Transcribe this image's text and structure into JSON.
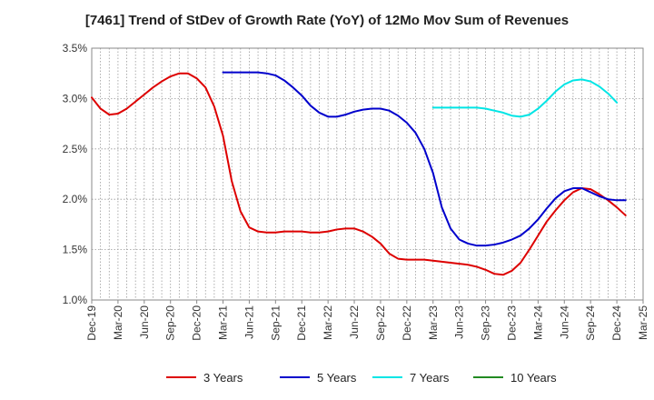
{
  "chart_data": {
    "type": "line",
    "title": "[7461]  Trend of StDev of Growth Rate (YoY) of 12Mo Mov Sum of Revenues",
    "xlabel": "",
    "ylabel": "",
    "ylim": [
      1.0,
      3.5
    ],
    "y_ticks": [
      "1.0%",
      "1.5%",
      "2.0%",
      "2.5%",
      "3.0%",
      "3.5%"
    ],
    "y_tick_values": [
      1.0,
      1.5,
      2.0,
      2.5,
      3.0,
      3.5
    ],
    "x_ticks": [
      "Dec-19",
      "Mar-20",
      "Jun-20",
      "Sep-20",
      "Dec-20",
      "Mar-21",
      "Jun-21",
      "Sep-21",
      "Dec-21",
      "Mar-22",
      "Jun-22",
      "Sep-22",
      "Dec-22",
      "Mar-23",
      "Jun-23",
      "Sep-23",
      "Dec-23",
      "Mar-24",
      "Jun-24",
      "Sep-24",
      "Dec-24",
      "Mar-25"
    ],
    "x_start": "Dec-19",
    "x_unit": "months since Dec-19",
    "grid": true,
    "legend_position": "bottom",
    "series": [
      {
        "name": "3 Years",
        "color": "#dd0000",
        "points": [
          [
            0,
            3.01
          ],
          [
            1,
            2.9
          ],
          [
            2,
            2.84
          ],
          [
            3,
            2.85
          ],
          [
            4,
            2.9
          ],
          [
            5,
            2.97
          ],
          [
            6,
            3.04
          ],
          [
            7,
            3.11
          ],
          [
            8,
            3.17
          ],
          [
            9,
            3.22
          ],
          [
            10,
            3.25
          ],
          [
            11,
            3.25
          ],
          [
            12,
            3.2
          ],
          [
            13,
            3.11
          ],
          [
            14,
            2.92
          ],
          [
            15,
            2.63
          ],
          [
            16,
            2.18
          ],
          [
            17,
            1.88
          ],
          [
            18,
            1.72
          ],
          [
            19,
            1.68
          ],
          [
            20,
            1.67
          ],
          [
            21,
            1.67
          ],
          [
            22,
            1.68
          ],
          [
            23,
            1.68
          ],
          [
            24,
            1.68
          ],
          [
            25,
            1.67
          ],
          [
            26,
            1.67
          ],
          [
            27,
            1.68
          ],
          [
            28,
            1.7
          ],
          [
            29,
            1.71
          ],
          [
            30,
            1.71
          ],
          [
            31,
            1.68
          ],
          [
            32,
            1.63
          ],
          [
            33,
            1.56
          ],
          [
            34,
            1.46
          ],
          [
            35,
            1.41
          ],
          [
            36,
            1.4
          ],
          [
            37,
            1.4
          ],
          [
            38,
            1.4
          ],
          [
            39,
            1.39
          ],
          [
            40,
            1.38
          ],
          [
            41,
            1.37
          ],
          [
            42,
            1.36
          ],
          [
            43,
            1.35
          ],
          [
            44,
            1.33
          ],
          [
            45,
            1.3
          ],
          [
            46,
            1.26
          ],
          [
            47,
            1.25
          ],
          [
            48,
            1.29
          ],
          [
            49,
            1.37
          ],
          [
            50,
            1.5
          ],
          [
            51,
            1.64
          ],
          [
            52,
            1.78
          ],
          [
            53,
            1.89
          ],
          [
            54,
            1.99
          ],
          [
            55,
            2.07
          ],
          [
            56,
            2.11
          ],
          [
            57,
            2.1
          ],
          [
            58,
            2.05
          ],
          [
            59,
            1.99
          ],
          [
            60,
            1.92
          ],
          [
            61,
            1.84
          ]
        ]
      },
      {
        "name": "5 Years",
        "color": "#0000cc",
        "points": [
          [
            15,
            3.26
          ],
          [
            16,
            3.26
          ],
          [
            17,
            3.26
          ],
          [
            18,
            3.26
          ],
          [
            19,
            3.26
          ],
          [
            20,
            3.25
          ],
          [
            21,
            3.23
          ],
          [
            22,
            3.18
          ],
          [
            23,
            3.11
          ],
          [
            24,
            3.03
          ],
          [
            25,
            2.93
          ],
          [
            26,
            2.86
          ],
          [
            27,
            2.82
          ],
          [
            28,
            2.82
          ],
          [
            29,
            2.84
          ],
          [
            30,
            2.87
          ],
          [
            31,
            2.89
          ],
          [
            32,
            2.9
          ],
          [
            33,
            2.9
          ],
          [
            34,
            2.88
          ],
          [
            35,
            2.83
          ],
          [
            36,
            2.76
          ],
          [
            37,
            2.66
          ],
          [
            38,
            2.5
          ],
          [
            39,
            2.26
          ],
          [
            40,
            1.92
          ],
          [
            41,
            1.71
          ],
          [
            42,
            1.6
          ],
          [
            43,
            1.56
          ],
          [
            44,
            1.54
          ],
          [
            45,
            1.54
          ],
          [
            46,
            1.55
          ],
          [
            47,
            1.57
          ],
          [
            48,
            1.6
          ],
          [
            49,
            1.64
          ],
          [
            50,
            1.71
          ],
          [
            51,
            1.8
          ],
          [
            52,
            1.91
          ],
          [
            53,
            2.01
          ],
          [
            54,
            2.08
          ],
          [
            55,
            2.11
          ],
          [
            56,
            2.11
          ],
          [
            57,
            2.07
          ],
          [
            58,
            2.03
          ],
          [
            59,
            2.0
          ],
          [
            60,
            1.99
          ],
          [
            61,
            1.99
          ]
        ]
      },
      {
        "name": "7 Years",
        "color": "#00e5e5",
        "points": [
          [
            39,
            2.91
          ],
          [
            40,
            2.91
          ],
          [
            41,
            2.91
          ],
          [
            42,
            2.91
          ],
          [
            43,
            2.91
          ],
          [
            44,
            2.91
          ],
          [
            45,
            2.9
          ],
          [
            46,
            2.88
          ],
          [
            47,
            2.86
          ],
          [
            48,
            2.83
          ],
          [
            49,
            2.82
          ],
          [
            50,
            2.84
          ],
          [
            51,
            2.9
          ],
          [
            52,
            2.98
          ],
          [
            53,
            3.07
          ],
          [
            54,
            3.14
          ],
          [
            55,
            3.18
          ],
          [
            56,
            3.19
          ],
          [
            57,
            3.17
          ],
          [
            58,
            3.12
          ],
          [
            59,
            3.05
          ],
          [
            60,
            2.96
          ]
        ]
      },
      {
        "name": "10 Years",
        "color": "#228b22",
        "points": []
      }
    ]
  }
}
